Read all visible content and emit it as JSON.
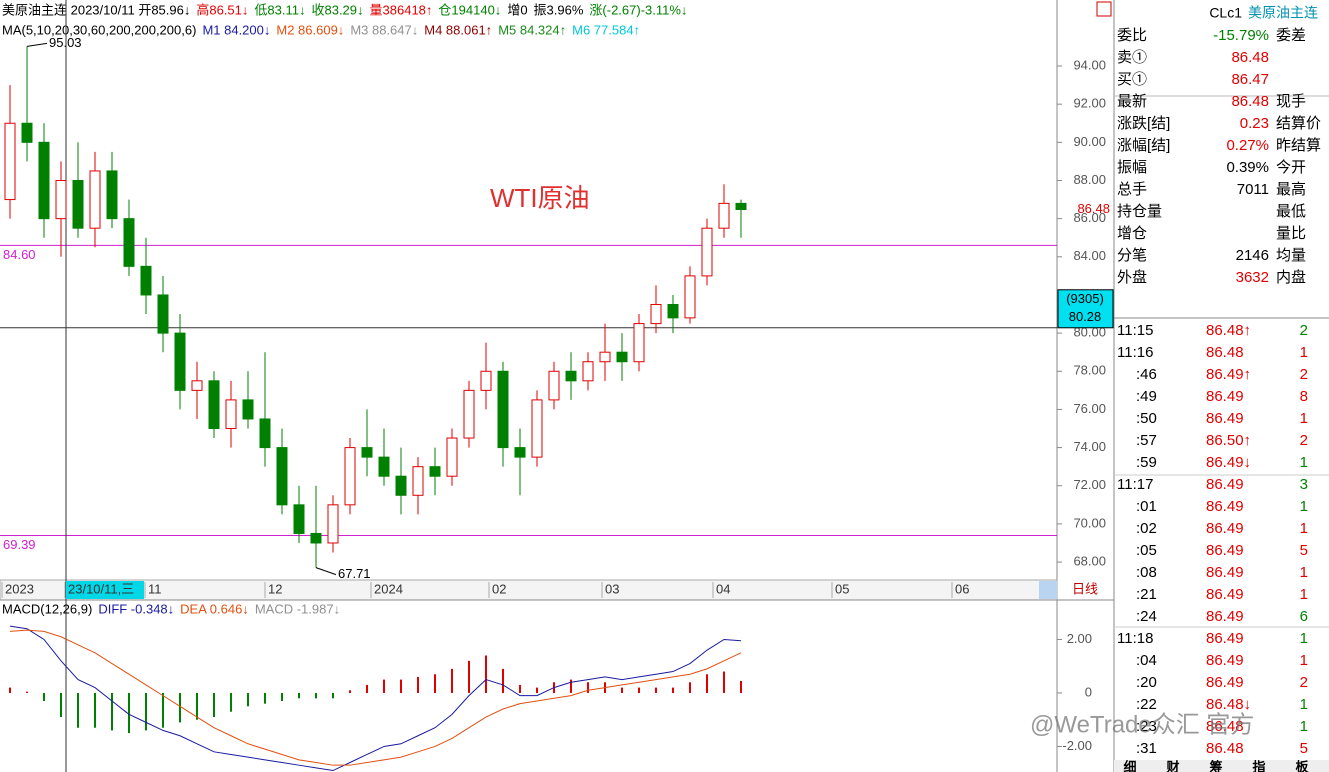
{
  "header": {
    "segments": [
      {
        "text": "美原油主连 2023/10/11 开85.96↓",
        "color": "#000"
      },
      {
        "text": "高86.51↓",
        "color": "#e00000"
      },
      {
        "text": "低83.11↓",
        "color": "#008000"
      },
      {
        "text": "收83.29↓",
        "color": "#008000"
      },
      {
        "text": "量386418↑",
        "color": "#e00000"
      },
      {
        "text": "仓194140↓",
        "color": "#008000"
      },
      {
        "text": "增0",
        "color": "#000"
      },
      {
        "text": "振3.96%",
        "color": "#000"
      },
      {
        "text": "涨(-2.67)-3.11%↓",
        "color": "#008000"
      }
    ]
  },
  "ma_legend": [
    {
      "text": "MA(5,10,20,30,60,200,200,200,6)",
      "color": "#000"
    },
    {
      "text": "M1 84.200↓",
      "color": "#1a1aa0"
    },
    {
      "text": "M2 86.609↓",
      "color": "#e05010"
    },
    {
      "text": "M3 88.647↓",
      "color": "#909090"
    },
    {
      "text": "M4 88.061↑",
      "color": "#8b0000"
    },
    {
      "text": "M5 84.324↑",
      "color": "#1a8a1a"
    },
    {
      "text": "M6 77.584↑",
      "color": "#00c8d8"
    }
  ],
  "price_chart": {
    "type": "candlestick",
    "title": "WTI原油",
    "ylim": [
      67.06,
      97.46
    ],
    "yticks": [
      {
        "value": 68,
        "label": "68.00"
      },
      {
        "value": 70,
        "label": "70.00"
      },
      {
        "value": 72,
        "label": "72.00"
      },
      {
        "value": 74,
        "label": "74.00"
      },
      {
        "value": 76,
        "label": "76.00"
      },
      {
        "value": 78,
        "label": "78.00"
      },
      {
        "value": 80,
        "label": "80.00"
      },
      {
        "value": 82,
        "label": "82.00"
      },
      {
        "value": 84,
        "label": "84.00"
      },
      {
        "value": 86,
        "label": "86.00"
      },
      {
        "value": 88,
        "label": "88.00"
      },
      {
        "value": 90,
        "label": "90.00"
      },
      {
        "value": 92,
        "label": "92.00"
      },
      {
        "value": 94,
        "label": "94.00"
      }
    ],
    "open": [
      87,
      91,
      90,
      86,
      88,
      85.5,
      88.5,
      86,
      83.5,
      82,
      80,
      77,
      77.5,
      75,
      76.5,
      75.5,
      74,
      71,
      69.5,
      69,
      71,
      74,
      73.5,
      72.5,
      71.5,
      73,
      72.5,
      74.5,
      77,
      78,
      74,
      73.5,
      76.5,
      78,
      77.5,
      78.5,
      79,
      78.5,
      80.5,
      81.5,
      80.8,
      83,
      85.5,
      86.8
    ],
    "high": [
      93,
      95.03,
      91,
      89,
      90,
      89.5,
      89.5,
      87,
      85,
      83,
      81,
      78.5,
      78,
      77.5,
      78,
      79,
      75,
      72,
      72,
      71.5,
      74.5,
      76,
      75,
      74,
      73.5,
      74,
      75,
      77.5,
      79.5,
      78.5,
      75,
      77,
      78.5,
      79,
      79,
      80.5,
      80,
      81,
      82.5,
      82,
      83.5,
      86,
      87.8,
      87
    ],
    "low": [
      86,
      89,
      85,
      84,
      85,
      84.5,
      85.5,
      83,
      81,
      79,
      76,
      75.5,
      74.5,
      74,
      75,
      73,
      70.5,
      69,
      67.71,
      68.5,
      70.5,
      72.5,
      72,
      70.5,
      70.5,
      71.5,
      72,
      74,
      76,
      73,
      71.5,
      73,
      76,
      76.5,
      77,
      77.5,
      77.5,
      78,
      80,
      80,
      80.5,
      82.5,
      85,
      85
    ],
    "close": [
      91,
      90,
      86,
      88,
      85.5,
      88.5,
      86,
      83.5,
      82,
      80,
      77,
      77.5,
      75,
      76.5,
      75.5,
      74,
      71,
      69.5,
      69,
      71,
      74,
      73.5,
      72.5,
      71.5,
      73,
      72.5,
      74.5,
      77,
      78,
      74,
      73.5,
      76.5,
      78,
      77.5,
      78.5,
      79,
      78.5,
      80.5,
      81.5,
      80.8,
      83,
      85.5,
      86.8,
      86.48
    ],
    "up_color": "#e00000",
    "down_color": "#008000",
    "high_mark": 95.03,
    "low_mark": 67.71,
    "hlines": [
      {
        "value": 84.6,
        "label": "84.60",
        "color": "#d020d0"
      },
      {
        "value": 69.39,
        "color": "#d020d0"
      }
    ],
    "last_price": 86.48,
    "cursor": {
      "count": "(9305)",
      "price": 80.28
    },
    "xlabels": [
      "2023",
      "23/10/11,三",
      "11",
      "12",
      "2024",
      "02",
      "03",
      "04",
      "05",
      "06"
    ],
    "period": "日线"
  },
  "macd": {
    "legend": [
      {
        "text": "MACD(12,26,9)",
        "color": "#000"
      },
      {
        "text": "DIFF -0.348↓",
        "color": "#1a1aa0"
      },
      {
        "text": "DEA 0.646↓",
        "color": "#e05010"
      },
      {
        "text": "MACD -1.987↓",
        "color": "#909090"
      }
    ],
    "ylim": [
      -2.88,
      3.4
    ],
    "yticks": [
      {
        "value": 2,
        "label": "2.00"
      },
      0,
      {
        "value": -2,
        "label": "-2.00"
      }
    ],
    "diff": [
      2.5,
      2.4,
      2.0,
      1.2,
      0.5,
      0.2,
      -0.3,
      -0.8,
      -1.1,
      -1.4,
      -1.6,
      -1.9,
      -2.2,
      -2.3,
      -2.4,
      -2.5,
      -2.6,
      -2.7,
      -2.8,
      -2.9,
      -2.6,
      -2.3,
      -2.0,
      -1.9,
      -1.6,
      -1.3,
      -0.8,
      -0.1,
      0.5,
      0.3,
      -0.1,
      -0.1,
      0.2,
      0.4,
      0.5,
      0.6,
      0.5,
      0.6,
      0.7,
      0.8,
      1.1,
      1.6,
      2.0,
      1.95
    ],
    "dea": [
      2.3,
      2.35,
      2.3,
      2.1,
      1.8,
      1.5,
      1.1,
      0.7,
      0.3,
      -0.1,
      -0.5,
      -0.9,
      -1.3,
      -1.6,
      -1.9,
      -2.1,
      -2.3,
      -2.5,
      -2.6,
      -2.7,
      -2.7,
      -2.6,
      -2.5,
      -2.4,
      -2.2,
      -2.0,
      -1.7,
      -1.3,
      -0.9,
      -0.6,
      -0.4,
      -0.3,
      -0.2,
      -0.1,
      0.1,
      0.2,
      0.3,
      0.4,
      0.5,
      0.6,
      0.7,
      0.9,
      1.2,
      1.5
    ],
    "hist": [
      0.2,
      0.05,
      -0.3,
      -0.9,
      -1.3,
      -1.3,
      -1.4,
      -1.5,
      -1.4,
      -1.3,
      -1.1,
      -1.0,
      -0.9,
      -0.7,
      -0.5,
      -0.4,
      -0.3,
      -0.2,
      -0.2,
      -0.2,
      0.1,
      0.3,
      0.5,
      0.5,
      0.6,
      0.7,
      0.9,
      1.2,
      1.4,
      0.9,
      0.3,
      0.2,
      0.4,
      0.5,
      0.4,
      0.4,
      0.2,
      0.2,
      0.2,
      0.2,
      0.4,
      0.7,
      0.8,
      0.45
    ]
  },
  "panel": {
    "code": "CLc1",
    "name": "美原油主连",
    "rows": [
      [
        "委比",
        "-15.79%",
        "委差"
      ],
      [
        "卖①",
        "86.48",
        ""
      ],
      [
        "买①",
        "86.47",
        ""
      ],
      [
        "最新",
        "86.48",
        "现手"
      ],
      [
        "涨跌[结]",
        "0.23",
        "结算价"
      ],
      [
        "涨幅[结]",
        "0.27%",
        "昨结算"
      ],
      [
        "振幅",
        "0.39%",
        "今开"
      ],
      [
        "总手",
        "7011",
        "最高"
      ],
      [
        "持仓量",
        "",
        "最低"
      ],
      [
        "增仓",
        "",
        "量比"
      ],
      [
        "分笔",
        "2146",
        "均量"
      ],
      [
        "外盘",
        "3632",
        "内盘"
      ]
    ],
    "value_colors": [
      "#008000",
      "#e00000",
      "#e00000",
      "#e00000",
      "#e00000",
      "#e00000",
      "#000",
      "#000",
      "#000",
      "#000",
      "#000",
      "#e00000"
    ]
  },
  "ticks": [
    [
      "11:15",
      "86.48↑",
      "2",
      "#008000"
    ],
    [
      "11:16",
      "86.48",
      "1",
      "#e00000"
    ],
    [
      ":46",
      "86.49↑",
      "2",
      "#e00000"
    ],
    [
      ":49",
      "86.49",
      "8",
      "#e00000"
    ],
    [
      ":50",
      "86.49",
      "1",
      "#e00000"
    ],
    [
      ":57",
      "86.50↑",
      "2",
      "#e00000"
    ],
    [
      ":59",
      "86.49↓",
      "1",
      "#008000"
    ],
    [
      "11:17",
      "86.49",
      "3",
      "#008000"
    ],
    [
      ":01",
      "86.49",
      "1",
      "#008000"
    ],
    [
      ":02",
      "86.49",
      "1",
      "#e00000"
    ],
    [
      ":05",
      "86.49",
      "5",
      "#e00000"
    ],
    [
      ":08",
      "86.49",
      "1",
      "#e00000"
    ],
    [
      ":21",
      "86.49",
      "1",
      "#e00000"
    ],
    [
      ":24",
      "86.49",
      "6",
      "#008000"
    ],
    [
      "11:18",
      "86.49",
      "1",
      "#008000"
    ],
    [
      ":04",
      "86.49",
      "1",
      "#e00000"
    ],
    [
      ":20",
      "86.49",
      "2",
      "#e00000"
    ],
    [
      ":22",
      "86.48↓",
      "1",
      "#008000"
    ],
    [
      ":23",
      "86.48",
      "1",
      "#008000"
    ],
    [
      ":31",
      "86.48",
      "5",
      "#e00000"
    ]
  ],
  "tabs": [
    "细",
    "财",
    "筹",
    "指",
    "板"
  ],
  "watermark": "@WeTrade众汇 官方"
}
